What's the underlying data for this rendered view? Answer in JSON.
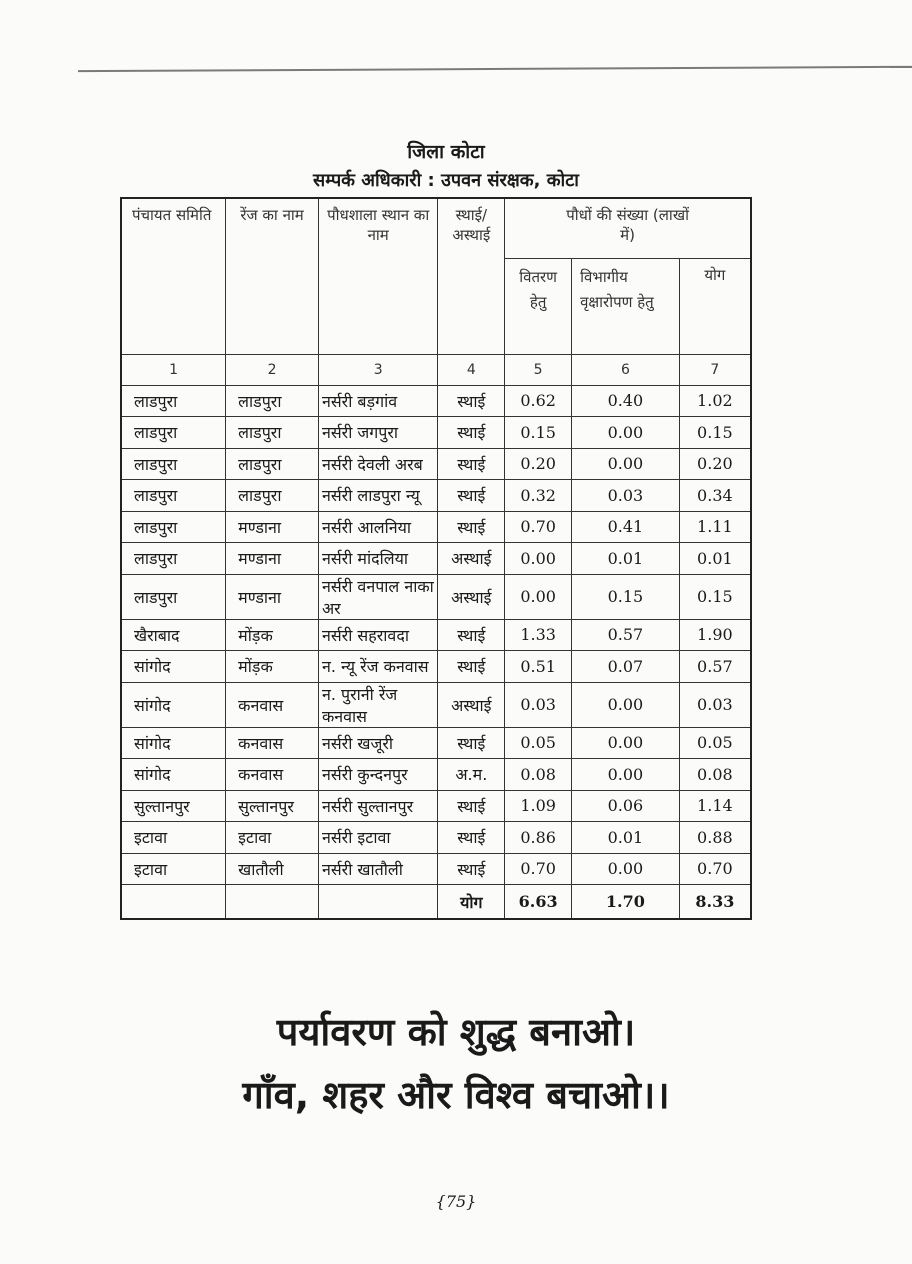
{
  "heading": {
    "district": "जिला कोटा",
    "contact": "सम्पर्क अधिकारी : उपवन संरक्षक, कोटा"
  },
  "table": {
    "headers": {
      "panchayat": "पंचायत समिति",
      "range": "रेंज का नाम",
      "nursery": "पौधशाला स्थान का नाम",
      "type": "स्थाई/ अस्थाई",
      "plants": "पौधों की संख्या (लाखों में)",
      "distribution": "वितरण हेतु",
      "departmental": "विभागीय वृक्षारोपण हेतु",
      "total": "योग"
    },
    "column_numbers": [
      "1",
      "2",
      "3",
      "4",
      "5",
      "6",
      "7"
    ],
    "rows": [
      [
        "लाडपुरा",
        "लाडपुरा",
        "नर्सरी बड़गांव",
        "स्थाई",
        "0.62",
        "0.40",
        "1.02"
      ],
      [
        "लाडपुरा",
        "लाडपुरा",
        "नर्सरी जगपुरा",
        "स्थाई",
        "0.15",
        "0.00",
        "0.15"
      ],
      [
        "लाडपुरा",
        "लाडपुरा",
        "नर्सरी देवली अरब",
        "स्थाई",
        "0.20",
        "0.00",
        "0.20"
      ],
      [
        "लाडपुरा",
        "लाडपुरा",
        "नर्सरी लाडपुरा न्यू",
        "स्थाई",
        "0.32",
        "0.03",
        "0.34"
      ],
      [
        "लाडपुरा",
        "मण्डाना",
        "नर्सरी आलनिया",
        "स्थाई",
        "0.70",
        "0.41",
        "1.11"
      ],
      [
        "लाडपुरा",
        "मण्डाना",
        "नर्सरी मांदलिया",
        "अस्थाई",
        "0.00",
        "0.01",
        "0.01"
      ],
      [
        "लाडपुरा",
        "मण्डाना",
        "नर्सरी वनपाल नाका अर",
        "अस्थाई",
        "0.00",
        "0.15",
        "0.15"
      ],
      [
        "खैराबाद",
        "मोंड़क",
        "नर्सरी सहरावदा",
        "स्थाई",
        "1.33",
        "0.57",
        "1.90"
      ],
      [
        "सांगोद",
        "मोंड़क",
        "न. न्यू रेंज कनवास",
        "स्थाई",
        "0.51",
        "0.07",
        "0.57"
      ],
      [
        "सांगोद",
        "कनवास",
        "न. पुरानी रेंज कनवास",
        "अस्थाई",
        "0.03",
        "0.00",
        "0.03"
      ],
      [
        "सांगोद",
        "कनवास",
        "नर्सरी खजूरी",
        "स्थाई",
        "0.05",
        "0.00",
        "0.05"
      ],
      [
        "सांगोद",
        "कनवास",
        "नर्सरी कुन्दनपुर",
        "अ.म.",
        "0.08",
        "0.00",
        "0.08"
      ],
      [
        "सुल्तानपुर",
        "सुल्तानपुर",
        "नर्सरी सुल्तानपुर",
        "स्थाई",
        "1.09",
        "0.06",
        "1.14"
      ],
      [
        "इटावा",
        "इटावा",
        "नर्सरी इटावा",
        "स्थाई",
        "0.86",
        "0.01",
        "0.88"
      ],
      [
        "इटावा",
        "खातौली",
        "नर्सरी खातौली",
        "स्थाई",
        "0.70",
        "0.00",
        "0.70"
      ]
    ],
    "total_row": {
      "label": "योग",
      "distribution": "6.63",
      "departmental": "1.70",
      "total": "8.33"
    }
  },
  "slogan": {
    "line1": "पर्यावरण को शुद्ध बनाओ।",
    "line2": "गाँव, शहर और विश्व बचाओ।।"
  },
  "page_number": "{75}"
}
